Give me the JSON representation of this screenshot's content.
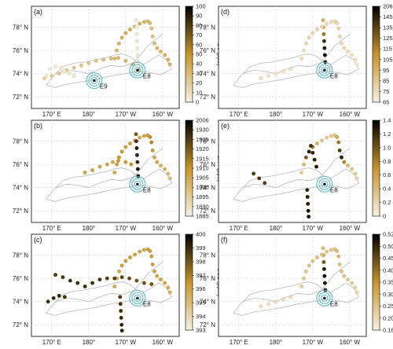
{
  "map": {
    "lat_labels": [
      "78° N",
      "76° N",
      "74° N",
      "72° N"
    ],
    "lat_values": [
      78,
      76,
      74,
      72
    ],
    "lon_labels": [
      "170° E",
      "180°",
      "170° W",
      "160° W"
    ],
    "lon_values": [
      170,
      180,
      190,
      200
    ],
    "lon_range": [
      164.5,
      204.5
    ],
    "lat_range": [
      71.0,
      79.8
    ]
  },
  "colors": {
    "track": "#b9b9b9",
    "circle": "#5fb7c9",
    "low": "#f7f0e3",
    "mid": "#c8952a",
    "high": "#000000"
  },
  "chart_data": [
    {
      "type": "scatter",
      "panel": "(a)",
      "colorbar_label": "O3 (ppb)",
      "colorbar_ticks": [
        "100",
        "90",
        "80",
        "70",
        "60",
        "50",
        "40",
        "30",
        "20",
        "10",
        "0"
      ],
      "clim": [
        0,
        100
      ],
      "stations": [
        {
          "name": "E9",
          "lon": 181.5,
          "lat": 73.4
        },
        {
          "name": "E8",
          "lon": 193.2,
          "lat": 74.3
        }
      ],
      "tracks": [
        {
          "lon": [
            187.0,
            187.6,
            188.2,
            189.0,
            190.0,
            191.2,
            192.5,
            193.8,
            195.0,
            196.0,
            196.6,
            197.0,
            197.3,
            197.8,
            198.5,
            199.5,
            200.6,
            201.5,
            202.0
          ],
          "lat": [
            75.3,
            76.0,
            76.6,
            77.1,
            77.5,
            77.8,
            78.05,
            78.3,
            78.45,
            78.5,
            78.35,
            77.9,
            77.2,
            76.6,
            76.2,
            75.9,
            75.6,
            75.2,
            74.8
          ],
          "values": [
            30,
            32,
            34,
            36,
            38,
            38,
            36,
            35,
            34,
            33,
            30,
            28,
            27,
            30,
            32,
            33,
            34,
            35,
            35
          ]
        },
        {
          "lon": [
            192.8,
            192.9,
            193.0,
            193.1,
            193.2,
            193.3,
            193.4
          ],
          "lat": [
            78.6,
            78.0,
            77.4,
            76.8,
            76.2,
            75.6,
            75.0
          ],
          "values": [
            5,
            5,
            5,
            6,
            5,
            6,
            7
          ]
        },
        {
          "lon": [
            168.0,
            170.0,
            172.0,
            174.0,
            176.0,
            178.0,
            180.0,
            182.0,
            184.0,
            186.0,
            188.0,
            190.0,
            192.0,
            193.4
          ],
          "lat": [
            73.6,
            73.8,
            74.0,
            74.3,
            74.5,
            74.7,
            74.9,
            75.1,
            75.2,
            75.3,
            75.35,
            75.1,
            74.8,
            74.3
          ],
          "values": [
            18,
            20,
            22,
            24,
            25,
            24,
            25,
            26,
            28,
            30,
            32,
            33,
            34,
            35
          ]
        },
        {
          "lon": [
            168.5,
            169.5,
            171.0,
            172.5,
            173.5,
            174.8,
            176.0
          ],
          "lat": [
            73.8,
            74.4,
            74.6,
            74.5,
            74.2,
            74.0,
            73.8
          ],
          "values": [
            5,
            4,
            4,
            5,
            6,
            6,
            7
          ]
        }
      ]
    },
    {
      "type": "scatter",
      "panel": "(b)",
      "colorbar_label": "CH4 (ppb)",
      "colorbar_ticks": [
        "2006",
        "1930",
        "1925",
        "1920",
        "1915",
        "1910",
        "1905",
        "1900",
        "1895",
        "1890",
        "1885"
      ],
      "clim": [
        0,
        100
      ],
      "stations": [
        {
          "name": "E8",
          "lon": 193.2,
          "lat": 74.3
        }
      ],
      "tracks": [
        {
          "lon": [
            187.0,
            187.6,
            188.2,
            189.0,
            190.0,
            191.2,
            192.5,
            193.8,
            195.0,
            196.0,
            196.6,
            197.0,
            197.3,
            197.8,
            198.5,
            199.5,
            200.6,
            201.5,
            202.0
          ],
          "lat": [
            75.3,
            76.0,
            76.6,
            77.1,
            77.5,
            77.8,
            78.05,
            78.3,
            78.45,
            78.5,
            78.35,
            77.9,
            77.2,
            76.6,
            76.2,
            75.9,
            75.6,
            75.2,
            74.8
          ],
          "values": [
            40,
            45,
            50,
            48,
            45,
            42,
            40,
            40,
            42,
            45,
            50,
            55,
            48,
            40,
            38,
            35,
            34,
            30,
            28
          ]
        },
        {
          "lon": [
            192.8,
            192.9,
            193.0,
            193.1,
            193.2,
            193.3,
            193.4
          ],
          "lat": [
            78.6,
            78.0,
            77.4,
            76.8,
            76.2,
            75.6,
            75.0
          ],
          "values": [
            70,
            85,
            90,
            88,
            86,
            92,
            95
          ]
        },
        {
          "lon": [
            179.0,
            181.0,
            183.0,
            185.0,
            186.5,
            188.0,
            190.0,
            191.5
          ],
          "lat": [
            75.3,
            75.5,
            75.8,
            76.0,
            76.2,
            76.3,
            76.2,
            76.0
          ],
          "values": [
            45,
            45,
            42,
            40,
            40,
            45,
            48,
            50
          ]
        }
      ]
    },
    {
      "type": "scatter",
      "panel": "(c)",
      "colorbar_label": "CO2 (ppm)",
      "colorbar_ticks": [
        "400",
        "399",
        "398",
        "397",
        "396",
        "395",
        "394",
        "393"
      ],
      "clim": [
        0,
        100
      ],
      "stations": [
        {
          "name": "E8",
          "lon": 193.2,
          "lat": 74.3
        }
      ],
      "tracks": [
        {
          "lon": [
            187.0,
            187.6,
            188.2,
            189.0,
            190.0,
            191.2,
            192.5,
            193.8,
            195.0,
            196.0,
            196.6,
            197.0,
            197.3,
            197.8,
            198.5,
            199.5,
            200.6,
            201.5,
            202.0
          ],
          "lat": [
            75.3,
            76.0,
            76.6,
            77.1,
            77.5,
            77.8,
            78.05,
            78.3,
            78.45,
            78.5,
            78.35,
            77.9,
            77.2,
            76.6,
            76.2,
            75.9,
            75.6,
            75.2,
            74.8
          ],
          "values": [
            40,
            40,
            42,
            44,
            45,
            45,
            43,
            42,
            42,
            44,
            45,
            46,
            45,
            44,
            43,
            42,
            40,
            38,
            35
          ]
        },
        {
          "lon": [
            171.0,
            173.0,
            175.0,
            177.0,
            179.0,
            181.0,
            183.0,
            185.0,
            187.0,
            189.0,
            191.0,
            193.0,
            195.0,
            197.0
          ],
          "lat": [
            76.3,
            76.1,
            75.8,
            75.6,
            75.3,
            75.6,
            75.9,
            76.0,
            76.0,
            76.1,
            76.0,
            75.8,
            75.6,
            75.5
          ],
          "values": [
            80,
            82,
            84,
            86,
            85,
            84,
            82,
            80,
            78,
            76,
            75,
            74,
            73,
            72
          ]
        },
        {
          "lon": [
            169.0,
            170.5,
            172.0,
            173.5
          ],
          "lat": [
            74.0,
            74.3,
            74.5,
            74.4
          ],
          "values": [
            85,
            86,
            86,
            85
          ]
        },
        {
          "lon": [
            188.5,
            188.6,
            188.7,
            188.8,
            188.9,
            189.0
          ],
          "lat": [
            74.4,
            73.8,
            73.2,
            72.6,
            72.0,
            71.5
          ],
          "values": [
            82,
            84,
            85,
            86,
            88,
            90
          ]
        }
      ]
    },
    {
      "type": "scatter",
      "panel": "(d)",
      "colorbar_label": "CO (ppb)",
      "colorbar_ticks": [
        "206",
        "145",
        "135",
        "125",
        "115",
        "105",
        "95",
        "85",
        "75",
        "65"
      ],
      "clim": [
        0,
        100
      ],
      "stations": [
        {
          "name": "E8",
          "lon": 193.2,
          "lat": 74.3
        }
      ],
      "tracks": [
        {
          "lon": [
            192.8,
            192.9,
            193.0,
            193.1,
            193.2,
            193.3,
            193.4
          ],
          "lat": [
            78.6,
            78.0,
            77.4,
            76.8,
            76.2,
            75.6,
            75.0
          ],
          "values": [
            35,
            40,
            60,
            85,
            90,
            95,
            92
          ]
        },
        {
          "lon": [
            187.0,
            187.6,
            188.2,
            189.0,
            190.0,
            191.2,
            192.5,
            193.8,
            195.0,
            196.0,
            196.6,
            197.0,
            197.3,
            197.8,
            198.5,
            199.5,
            200.6,
            201.5,
            202.0
          ],
          "lat": [
            75.3,
            76.0,
            76.6,
            77.1,
            77.5,
            77.8,
            78.05,
            78.3,
            78.45,
            78.5,
            78.35,
            77.9,
            77.2,
            76.6,
            76.2,
            75.9,
            75.6,
            75.2,
            74.8
          ],
          "values": [
            12,
            12,
            14,
            15,
            15,
            14,
            13,
            12,
            12,
            14,
            15,
            16,
            15,
            14,
            13,
            12,
            10,
            8,
            6
          ]
        },
        {
          "lon": [
            176.0,
            178.0,
            180.0,
            182.0,
            184.0
          ],
          "lat": [
            73.6,
            73.8,
            74.0,
            74.2,
            74.4
          ],
          "values": [
            8,
            8,
            9,
            10,
            10
          ]
        }
      ]
    },
    {
      "type": "scatter",
      "panel": "(e)",
      "colorbar_label": "RBC/ΔCO (ng m-3 ppb-1)",
      "colorbar_ticks": [
        "1.4",
        "1.2",
        "1.0",
        "0.8",
        "0.6",
        "0.4",
        "0.2",
        "0"
      ],
      "clim": [
        0,
        100
      ],
      "stations": [
        {
          "name": "E8",
          "lon": 193.2,
          "lat": 74.3
        }
      ],
      "tracks": [
        {
          "lon": [
            187.0,
            187.6,
            188.2,
            189.0,
            190.0,
            191.2,
            192.5,
            193.8,
            195.0,
            196.0,
            196.6,
            197.0,
            197.3,
            197.8,
            198.5,
            199.5,
            200.6,
            201.5,
            202.0
          ],
          "lat": [
            75.3,
            76.0,
            76.6,
            77.1,
            77.5,
            77.8,
            78.05,
            78.3,
            78.45,
            78.5,
            78.35,
            77.9,
            77.2,
            76.6,
            76.2,
            75.9,
            75.6,
            75.2,
            74.8
          ],
          "values": [
            20,
            30,
            70,
            90,
            60,
            35,
            25,
            20,
            22,
            25,
            40,
            60,
            80,
            90,
            55,
            30,
            25,
            20,
            15
          ]
        },
        {
          "lon": [
            189.5,
            190.0,
            190.5,
            191.0
          ],
          "lat": [
            77.6,
            77.0,
            76.4,
            75.8
          ],
          "values": [
            85,
            88,
            90,
            92
          ]
        },
        {
          "lon": [
            174.0,
            175.5,
            177.0
          ],
          "lat": [
            75.2,
            74.8,
            74.4
          ],
          "values": [
            80,
            82,
            78
          ]
        },
        {
          "lon": [
            188.5,
            188.6,
            188.7,
            188.8,
            188.9
          ],
          "lat": [
            73.8,
            73.2,
            72.6,
            72.0,
            71.5
          ],
          "values": [
            88,
            90,
            92,
            95,
            96
          ]
        }
      ]
    },
    {
      "type": "scatter",
      "panel": "(f)",
      "colorbar_label": "CO/CO2 ratio (ppb ppm-1)",
      "colorbar_ticks": [
        "0.52",
        "0.50",
        "0.45",
        "0.40",
        "0.35",
        "0.30",
        "0.25",
        "0.20",
        "0.16"
      ],
      "clim": [
        0,
        100
      ],
      "stations": [
        {
          "name": "E8",
          "lon": 193.2,
          "lat": 74.3
        }
      ],
      "tracks": [
        {
          "lon": [
            192.8,
            192.9,
            193.0,
            193.1,
            193.2,
            193.3,
            193.4
          ],
          "lat": [
            78.6,
            78.0,
            77.4,
            76.8,
            76.2,
            75.6,
            75.0
          ],
          "values": [
            30,
            40,
            70,
            90,
            95,
            92,
            88
          ]
        },
        {
          "lon": [
            187.0,
            187.6,
            188.2,
            189.0,
            190.0,
            191.2,
            192.5,
            193.8,
            195.0,
            196.0,
            196.6,
            197.0,
            197.3,
            197.8,
            198.5,
            199.5,
            200.6,
            201.5,
            202.0
          ],
          "lat": [
            75.3,
            76.0,
            76.6,
            77.1,
            77.5,
            77.8,
            78.05,
            78.3,
            78.45,
            78.5,
            78.35,
            77.9,
            77.2,
            76.6,
            76.2,
            75.9,
            75.6,
            75.2,
            74.8
          ],
          "values": [
            20,
            22,
            24,
            26,
            28,
            28,
            26,
            24,
            24,
            26,
            28,
            30,
            28,
            26,
            24,
            22,
            20,
            18,
            15
          ]
        },
        {
          "lon": [
            176.0,
            178.0,
            180.0,
            182.0,
            184.0
          ],
          "lat": [
            73.6,
            73.8,
            74.0,
            74.2,
            74.4
          ],
          "values": [
            10,
            10,
            12,
            12,
            14
          ]
        }
      ]
    }
  ]
}
